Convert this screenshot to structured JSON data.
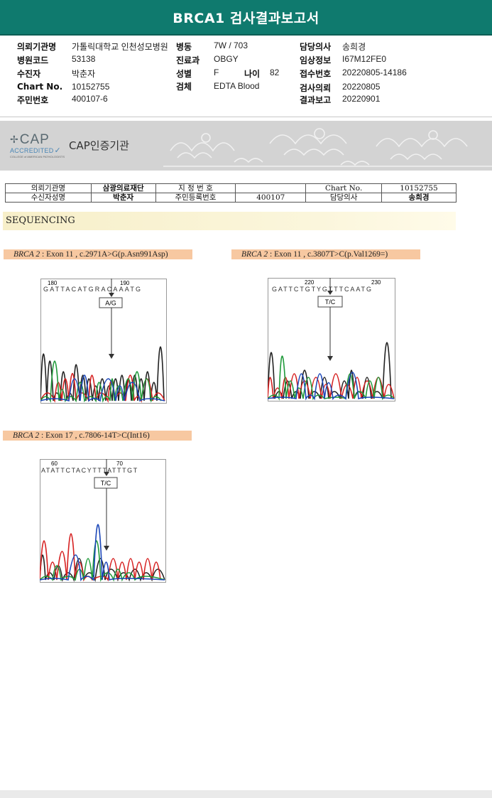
{
  "report": {
    "title": "BRCA1 검사결과보고서"
  },
  "info": {
    "institution": {
      "label": "의뢰기관명",
      "value": "가톨릭대학교 인천성모병원"
    },
    "ward": {
      "label": "병동",
      "value": "7W / 703"
    },
    "doctor": {
      "label": "담당의사",
      "value": "송희경"
    },
    "hospital_code": {
      "label": "병원코드",
      "value": "53138"
    },
    "department": {
      "label": "진료과",
      "value": "OBGY"
    },
    "clinical": {
      "label": "임상정보",
      "value": "I67M12FE0"
    },
    "patient": {
      "label": "수진자",
      "value": "박춘자"
    },
    "sex": {
      "label": "성별",
      "value": "F"
    },
    "age": {
      "label": "나이",
      "value": "82"
    },
    "receipt": {
      "label": "접수번호",
      "value": "20220805-14186"
    },
    "chart_no": {
      "label": "Chart No.",
      "value": "10152755"
    },
    "specimen": {
      "label": "검체",
      "value": "EDTA Blood"
    },
    "request_date": {
      "label": "검사의뢰",
      "value": "20220805"
    },
    "resident_no": {
      "label": "주민번호",
      "value": "400107-6"
    },
    "report_date": {
      "label": "결과보고",
      "value": "20220901"
    }
  },
  "banner": {
    "cap_big": "CAP",
    "cap_sub1": "ACCREDITED",
    "cap_sub2": "COLLEGE of AMERICAN PATHOLOGISTS",
    "cert_text": "CAP인증기관"
  },
  "lab_header": {
    "r1": [
      "의뢰기관명",
      "삼광의료재단",
      "지 정 번 호",
      "",
      "Chart No.",
      "10152755"
    ],
    "r2": [
      "수신자성명",
      "박춘자",
      "주민등록번호",
      "400107",
      "담당의사",
      "송희경"
    ]
  },
  "section_title": "SEQUENCING",
  "mutations": [
    {
      "gene": "BRCA 2",
      "detail": " : Exon 11 , c.2971A>G(p.Asn991Asp)",
      "num1": "180",
      "num2": "190",
      "seq": "GATTACATGRACAAATG",
      "call": "A/G"
    },
    {
      "gene": "BRCA 2",
      "detail": " : Exon 11 , c.3807T>C(p.Val1269=)",
      "num1": "220",
      "num2": "230",
      "seq": "GATTCTGTYGTTTCAATG",
      "call": "T/C"
    },
    {
      "gene": "BRCA 2",
      "detail": " : Exon 17 , c.7806-14T>C(Int16)",
      "num1": "60",
      "num2": "70",
      "seq": "ATATTCTACYTTTATTTGT",
      "call": "T/C"
    }
  ]
}
